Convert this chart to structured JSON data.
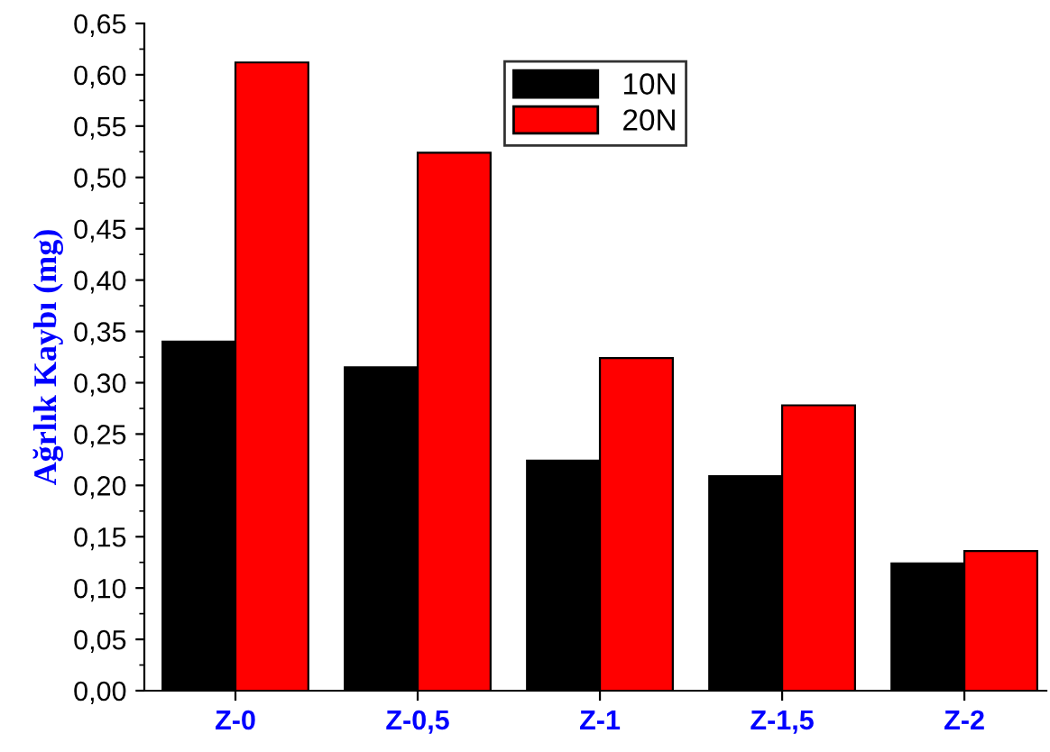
{
  "chart_data": {
    "type": "bar",
    "ylabel": "Ağrlık Kaybı (mg)",
    "categories": [
      "Z-0",
      "Z-0,5",
      "Z-1",
      "Z-1,5",
      "Z-2"
    ],
    "series": [
      {
        "name": "10N",
        "color": "#000000",
        "values": [
          0.34,
          0.315,
          0.224,
          0.209,
          0.124
        ]
      },
      {
        "name": "20N",
        "color": "#ff0000",
        "values": [
          0.612,
          0.524,
          0.324,
          0.278,
          0.136
        ]
      }
    ],
    "ylim": [
      0,
      0.65
    ],
    "yticks": [
      {
        "value": 0,
        "label": "0,00"
      },
      {
        "value": 0.05,
        "label": "0,05"
      },
      {
        "value": 0.1,
        "label": "0,10"
      },
      {
        "value": 0.15,
        "label": "0,15"
      },
      {
        "value": 0.2,
        "label": "0,20"
      },
      {
        "value": 0.25,
        "label": "0,25"
      },
      {
        "value": 0.3,
        "label": "0,30"
      },
      {
        "value": 0.35,
        "label": "0,35"
      },
      {
        "value": 0.4,
        "label": "0,40"
      },
      {
        "value": 0.45,
        "label": "0,45"
      },
      {
        "value": 0.5,
        "label": "0,50"
      },
      {
        "value": 0.55,
        "label": "0,55"
      },
      {
        "value": 0.6,
        "label": "0,60"
      },
      {
        "value": 0.65,
        "label": "0,65"
      }
    ],
    "grid": false,
    "legend": "top"
  }
}
